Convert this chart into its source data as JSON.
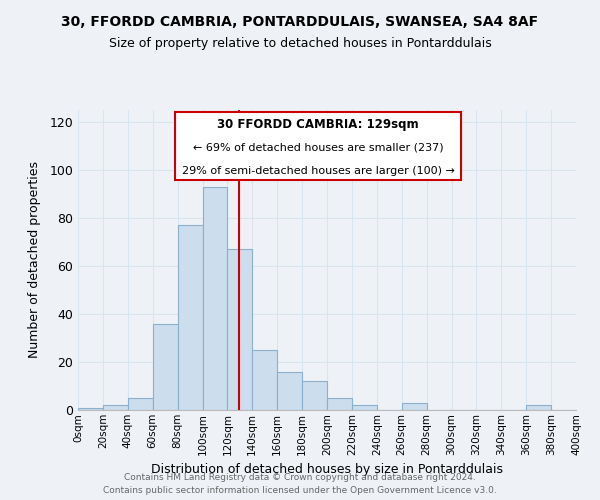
{
  "title": "30, FFORDD CAMBRIA, PONTARDDULAIS, SWANSEA, SA4 8AF",
  "subtitle": "Size of property relative to detached houses in Pontarddulais",
  "xlabel": "Distribution of detached houses by size in Pontarddulais",
  "ylabel": "Number of detached properties",
  "bar_color": "#ccdded",
  "bar_edge_color": "#8ab0cc",
  "bin_edges": [
    0,
    20,
    40,
    60,
    80,
    100,
    120,
    140,
    160,
    180,
    200,
    220,
    240,
    260,
    280,
    300,
    320,
    340,
    360,
    380,
    400
  ],
  "bar_heights": [
    1,
    2,
    5,
    36,
    77,
    93,
    67,
    25,
    16,
    12,
    5,
    2,
    0,
    3,
    0,
    0,
    0,
    0,
    2,
    0
  ],
  "vline_x": 129,
  "vline_color": "#cc0000",
  "annotation_title": "30 FFORDD CAMBRIA: 129sqm",
  "annotation_line1": "← 69% of detached houses are smaller (237)",
  "annotation_line2": "29% of semi-detached houses are larger (100) →",
  "annotation_box_color": "#ffffff",
  "annotation_box_edge": "#cc0000",
  "ylim": [
    0,
    125
  ],
  "xlim": [
    0,
    400
  ],
  "xtick_labels": [
    "0sqm",
    "20sqm",
    "40sqm",
    "60sqm",
    "80sqm",
    "100sqm",
    "120sqm",
    "140sqm",
    "160sqm",
    "180sqm",
    "200sqm",
    "220sqm",
    "240sqm",
    "260sqm",
    "280sqm",
    "300sqm",
    "320sqm",
    "340sqm",
    "360sqm",
    "380sqm",
    "400sqm"
  ],
  "xtick_positions": [
    0,
    20,
    40,
    60,
    80,
    100,
    120,
    140,
    160,
    180,
    200,
    220,
    240,
    260,
    280,
    300,
    320,
    340,
    360,
    380,
    400
  ],
  "grid_color": "#d8e4ee",
  "footnote1": "Contains HM Land Registry data © Crown copyright and database right 2024.",
  "footnote2": "Contains public sector information licensed under the Open Government Licence v3.0.",
  "background_color": "#eef2f7"
}
